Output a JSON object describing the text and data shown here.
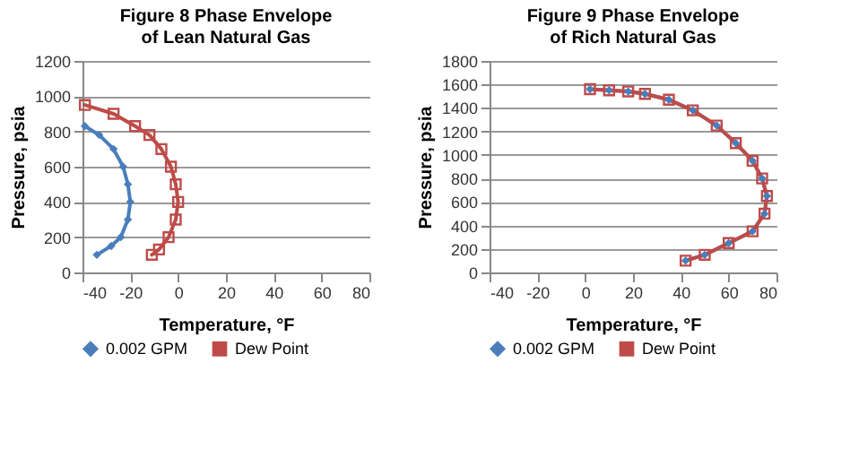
{
  "chart_data": [
    {
      "type": "line",
      "title": "Figure 8 Phase Envelope of Lean Natural Gas",
      "xlabel": "Temperature, °F",
      "ylabel": "Pressure, psia",
      "xlim": [
        -40,
        80
      ],
      "xticks": [
        -40,
        -20,
        0,
        20,
        40,
        60,
        80
      ],
      "ylim": [
        0,
        1200
      ],
      "yticks": [
        0,
        200,
        400,
        600,
        800,
        1000,
        {
          "value": 1200,
          "label": "1200"
        }
      ],
      "grid": "y",
      "legend": "bottom",
      "series": [
        {
          "name": "0.002 GPM",
          "color": "#4a7ebb",
          "marker": "diamond",
          "x": [
            -34,
            -28,
            -24,
            -21,
            -20,
            -21,
            -23,
            -27,
            -33,
            -39
          ],
          "values": [
            100,
            150,
            200,
            300,
            400,
            500,
            600,
            700,
            780,
            830
          ]
        },
        {
          "name": "Dew Point",
          "color": "#be4b48",
          "marker": "square",
          "x": [
            -11,
            -8,
            -4,
            -1,
            0,
            -1,
            -3,
            -7,
            -12,
            -18,
            -27,
            -39
          ],
          "values": [
            100,
            130,
            200,
            300,
            400,
            500,
            600,
            700,
            780,
            830,
            900,
            950
          ]
        }
      ]
    },
    {
      "type": "line",
      "title": "Figure 9 Phase Envelope of Rich Natural Gas",
      "xlabel": "Temperature, °F",
      "ylabel": "Pressure, psia",
      "xlim": [
        -40,
        80
      ],
      "xticks": [
        -40,
        -20,
        0,
        20,
        40,
        60,
        80
      ],
      "ylim": [
        0,
        1800
      ],
      "yticks": [
        0,
        200,
        400,
        600,
        800,
        1000,
        1200,
        1400,
        {
          "value": 1600,
          "label": "1600"
        },
        1800
      ],
      "grid": "y",
      "legend": "bottom",
      "series": [
        {
          "name": "0.002 GPM",
          "color": "#4a7ebb",
          "marker": "diamond",
          "x": [
            42,
            50,
            60,
            70,
            75,
            76,
            74,
            70,
            63,
            55,
            45,
            35,
            25,
            18,
            10,
            2
          ],
          "values": [
            100,
            150,
            250,
            350,
            500,
            650,
            800,
            950,
            1100,
            1250,
            1380,
            1470,
            1520,
            1540,
            1550,
            1560
          ]
        },
        {
          "name": "Dew Point",
          "color": "#be4b48",
          "marker": "square",
          "x": [
            42,
            50,
            60,
            70,
            75,
            76,
            74,
            70,
            63,
            55,
            45,
            35,
            25,
            18,
            10,
            2
          ],
          "values": [
            100,
            150,
            250,
            350,
            500,
            650,
            800,
            950,
            1100,
            1250,
            1380,
            1470,
            1520,
            1540,
            1550,
            1560
          ]
        }
      ]
    }
  ]
}
